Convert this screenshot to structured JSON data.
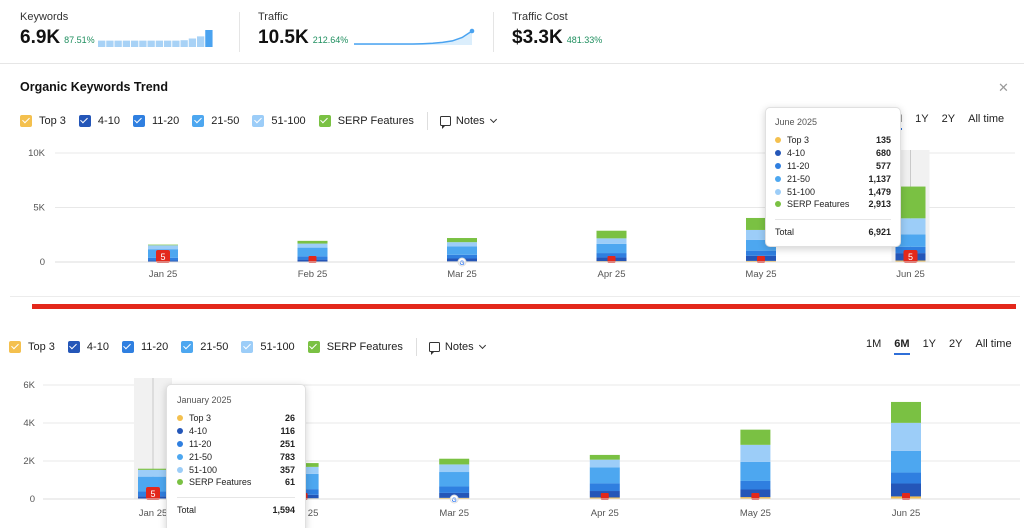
{
  "metrics": [
    {
      "label": "Keywords",
      "value": "6.9K",
      "change": "87.51%"
    },
    {
      "label": "Traffic",
      "value": "10.5K",
      "change": "212.64%"
    },
    {
      "label": "Traffic Cost",
      "value": "$3.3K",
      "change": "481.33%"
    }
  ],
  "sparklines": {
    "keywords_bars": [
      3,
      3,
      3,
      3,
      3,
      3,
      3,
      3,
      3,
      3,
      3.2,
      4,
      5,
      8
    ],
    "traffic_line": [
      1,
      1,
      1,
      1,
      1,
      1,
      1,
      1.1,
      1.3,
      1.6,
      2.2,
      3.5,
      6
    ]
  },
  "panel": {
    "title": "Organic Keywords Trend",
    "close_icon": "close-icon"
  },
  "legend": {
    "items": [
      {
        "label": "Top 3",
        "color": "#f4c04e"
      },
      {
        "label": "4-10",
        "color": "#2456b8"
      },
      {
        "label": "11-20",
        "color": "#2f7fe0"
      },
      {
        "label": "21-50",
        "color": "#4da7f0"
      },
      {
        "label": "51-100",
        "color": "#9ccdf8"
      },
      {
        "label": "SERP Features",
        "color": "#7ac143"
      }
    ],
    "notes_label": "Notes"
  },
  "ranges": {
    "options": [
      "1M",
      "6M",
      "1Y",
      "2Y",
      "All time"
    ],
    "active": "6M"
  },
  "chart_data": [
    {
      "type": "bar",
      "stacked": true,
      "categories": [
        "Jan 25",
        "Feb 25",
        "Mar 25",
        "Apr 25",
        "May 25",
        "Jun 25"
      ],
      "ylim": [
        0,
        10000
      ],
      "yticks": [
        "10K",
        "5K",
        "0"
      ],
      "series": [
        {
          "name": "Top 3",
          "values": [
            26,
            40,
            60,
            80,
            100,
            135
          ]
        },
        {
          "name": "4-10",
          "values": [
            116,
            180,
            260,
            340,
            470,
            680
          ]
        },
        {
          "name": "11-20",
          "values": [
            251,
            300,
            340,
            400,
            470,
            577
          ]
        },
        {
          "name": "21-50",
          "values": [
            783,
            800,
            760,
            850,
            1000,
            1137
          ]
        },
        {
          "name": "51-100",
          "values": [
            357,
            370,
            400,
            500,
            900,
            1479
          ]
        },
        {
          "name": "SERP Features",
          "values": [
            61,
            250,
            380,
            700,
            1100,
            2913
          ]
        }
      ],
      "markers": [
        "5",
        "",
        "G",
        "",
        "",
        "5"
      ],
      "highlight_index": 5,
      "tooltip": {
        "title": "June 2025",
        "rows": [
          {
            "name": "Top 3",
            "value": "135"
          },
          {
            "name": "4-10",
            "value": "680"
          },
          {
            "name": "11-20",
            "value": "577"
          },
          {
            "name": "21-50",
            "value": "1,137"
          },
          {
            "name": "51-100",
            "value": "1,479"
          },
          {
            "name": "SERP Features",
            "value": "2,913"
          }
        ],
        "total_label": "Total",
        "total_value": "6,921"
      }
    },
    {
      "type": "bar",
      "stacked": true,
      "categories": [
        "Jan 25",
        "Feb 25",
        "Mar 25",
        "Apr 25",
        "May 25",
        "Jun 25"
      ],
      "ylim": [
        0,
        6000
      ],
      "yticks": [
        "6K",
        "4K",
        "2K",
        "0"
      ],
      "series": [
        {
          "name": "Top 3",
          "values": [
            26,
            40,
            60,
            80,
            100,
            135
          ]
        },
        {
          "name": "4-10",
          "values": [
            116,
            180,
            260,
            340,
            400,
            680
          ]
        },
        {
          "name": "11-20",
          "values": [
            251,
            300,
            340,
            400,
            450,
            577
          ]
        },
        {
          "name": "21-50",
          "values": [
            783,
            800,
            760,
            850,
            1000,
            1137
          ]
        },
        {
          "name": "51-100",
          "values": [
            357,
            370,
            400,
            400,
            900,
            1479
          ]
        },
        {
          "name": "SERP Features",
          "values": [
            61,
            200,
            300,
            250,
            800,
            1100
          ]
        }
      ],
      "markers": [
        "5",
        "",
        "G",
        "",
        "",
        ""
      ],
      "highlight_index": 0,
      "tooltip": {
        "title": "January 2025",
        "rows": [
          {
            "name": "Top 3",
            "value": "26"
          },
          {
            "name": "4-10",
            "value": "116"
          },
          {
            "name": "11-20",
            "value": "251"
          },
          {
            "name": "21-50",
            "value": "783"
          },
          {
            "name": "51-100",
            "value": "357"
          },
          {
            "name": "SERP Features",
            "value": "61"
          }
        ],
        "total_label": "Total",
        "total_value": "1,594"
      }
    }
  ]
}
